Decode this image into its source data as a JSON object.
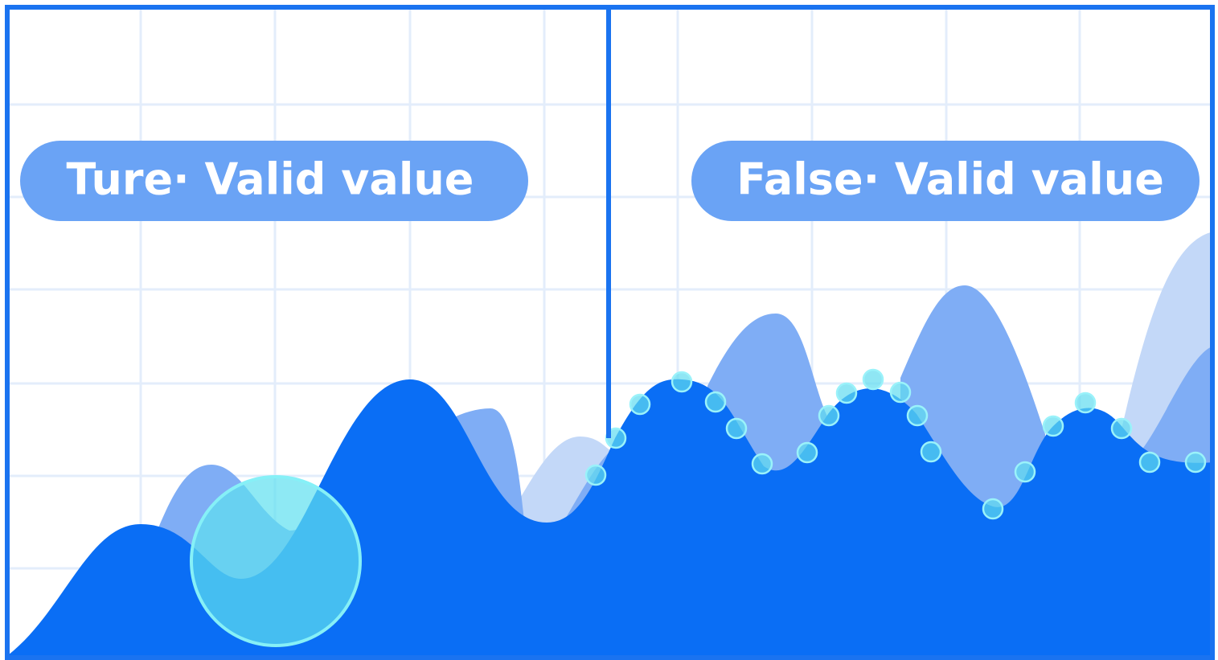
{
  "labels": {
    "left": "Ture· Valid value",
    "right": "False· Valid value"
  }
}
